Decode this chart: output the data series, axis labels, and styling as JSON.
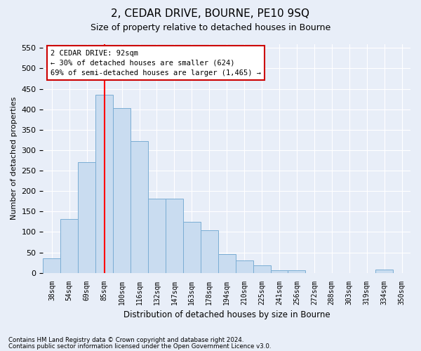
{
  "title": "2, CEDAR DRIVE, BOURNE, PE10 9SQ",
  "subtitle": "Size of property relative to detached houses in Bourne",
  "xlabel": "Distribution of detached houses by size in Bourne",
  "ylabel": "Number of detached properties",
  "categories": [
    "38sqm",
    "54sqm",
    "69sqm",
    "85sqm",
    "100sqm",
    "116sqm",
    "132sqm",
    "147sqm",
    "163sqm",
    "178sqm",
    "194sqm",
    "210sqm",
    "225sqm",
    "241sqm",
    "256sqm",
    "272sqm",
    "288sqm",
    "303sqm",
    "319sqm",
    "334sqm",
    "350sqm"
  ],
  "values": [
    35,
    132,
    270,
    435,
    403,
    322,
    181,
    181,
    124,
    104,
    45,
    30,
    18,
    7,
    7,
    0,
    0,
    0,
    0,
    8,
    0
  ],
  "bar_color": "#c9dcf0",
  "bar_edge_color": "#7aadd4",
  "background_color": "#e8eef8",
  "grid_color": "#ffffff",
  "ylim": [
    0,
    560
  ],
  "yticks": [
    0,
    50,
    100,
    150,
    200,
    250,
    300,
    350,
    400,
    450,
    500,
    550
  ],
  "red_line_x": 3.0,
  "annotation_text": "2 CEDAR DRIVE: 92sqm\n← 30% of detached houses are smaller (624)\n69% of semi-detached houses are larger (1,465) →",
  "annotation_box_color": "#ffffff",
  "annotation_box_edge": "#cc0000",
  "title_fontsize": 11,
  "subtitle_fontsize": 9,
  "footer1": "Contains HM Land Registry data © Crown copyright and database right 2024.",
  "footer2": "Contains public sector information licensed under the Open Government Licence v3.0."
}
